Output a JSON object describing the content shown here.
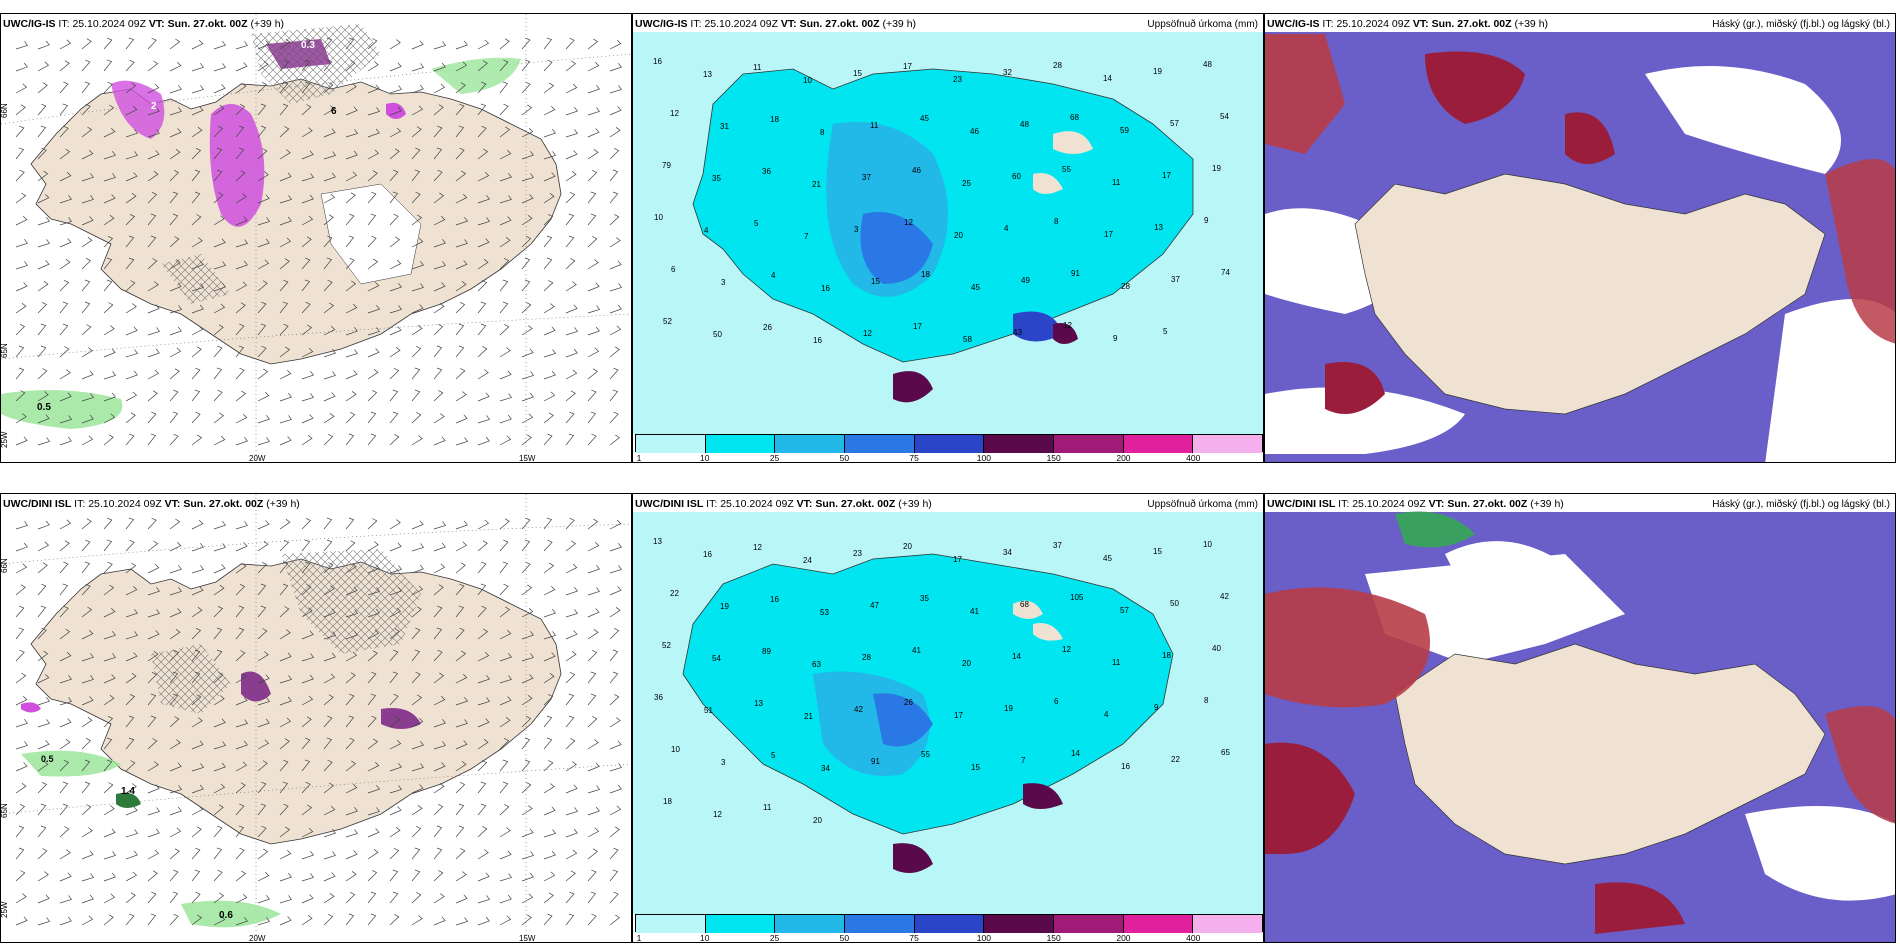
{
  "rows": [
    {
      "panels": [
        {
          "model": "UWC/IG-IS",
          "it_label": "IT:",
          "it": "25.10.2024 09Z",
          "vt_label": "VT:",
          "vt": "Sun. 27.okt. 00Z",
          "lead": "(+39 h)",
          "right_title": "",
          "type": "wind"
        },
        {
          "model": "UWC/IG-IS",
          "it_label": "IT:",
          "it": "25.10.2024 09Z",
          "vt_label": "VT:",
          "vt": "Sun. 27.okt. 00Z",
          "lead": "(+39 h)",
          "right_title": "Uppsöfnuð úrkoma (mm)",
          "type": "precip"
        },
        {
          "model": "UWC/IG-IS",
          "it_label": "IT:",
          "it": "25.10.2024 09Z",
          "vt_label": "VT:",
          "vt": "Sun. 27.okt. 00Z",
          "lead": "(+39 h)",
          "right_title": "Háský (gr.), miðský (fj.bl.) og lágský (bl.)",
          "type": "cloud"
        }
      ]
    },
    {
      "panels": [
        {
          "model": "UWC/DINI ISL",
          "it_label": "IT:",
          "it": "25.10.2024 09Z",
          "vt_label": "VT:",
          "vt": "Sun. 27.okt. 00Z",
          "lead": "(+39 h)",
          "right_title": "",
          "type": "wind"
        },
        {
          "model": "UWC/DINI ISL",
          "it_label": "IT:",
          "it": "25.10.2024 09Z",
          "vt_label": "VT:",
          "vt": "Sun. 27.okt. 00Z",
          "lead": "(+39 h)",
          "right_title": "Uppsöfnuð úrkoma (mm)",
          "type": "precip"
        },
        {
          "model": "UWC/DINI ISL",
          "it_label": "IT:",
          "it": "25.10.2024 09Z",
          "vt_label": "VT:",
          "vt": "Sun. 27.okt. 00Z",
          "lead": "(+39 h)",
          "right_title": "Háský (gr.), miðský (fj.bl.) og lágský (bl.)",
          "type": "cloud"
        }
      ]
    }
  ],
  "wind_labels": {
    "top": {
      "lat_top": "66N",
      "lat_mid": "65N",
      "lon_left": "25W",
      "lon_a": "20W",
      "lon_b": "15W",
      "spot_a": "0.5",
      "spot_b": "0.3",
      "spot_c": "2",
      "spot_d": "6"
    },
    "bottom": {
      "lat_top": "66N",
      "lat_mid": "65N",
      "lon_left": "25W",
      "lon_a": "20W",
      "lon_b": "15W",
      "spot_a": "1.4",
      "spot_b": "0.6",
      "spot_c": "0.5"
    }
  },
  "precip_legend": {
    "labels": [
      "1",
      "10",
      "25",
      "50",
      "75",
      "100",
      "150",
      "200",
      "400"
    ],
    "colors": [
      "#b8f6f8",
      "#00e5f0",
      "#22b8e8",
      "#2a78e6",
      "#2a45c8",
      "#5a0a4a",
      "#a01a78",
      "#e0209c",
      "#f4b0ec"
    ]
  },
  "precip_values_top": [
    "16",
    "13",
    "11",
    "10",
    "15",
    "17",
    "23",
    "32",
    "28",
    "14",
    "19",
    "48",
    "12",
    "31",
    "18",
    "8",
    "11",
    "45",
    "46",
    "48",
    "68",
    "59",
    "57",
    "54",
    "79",
    "35",
    "36",
    "21",
    "37",
    "46",
    "25",
    "60",
    "55",
    "11",
    "17",
    "19",
    "10",
    "4",
    "5",
    "7",
    "3",
    "12",
    "20",
    "4",
    "8",
    "17",
    "13",
    "9",
    "6",
    "3",
    "4",
    "16",
    "15",
    "18",
    "45",
    "49",
    "91",
    "28",
    "37",
    "74",
    "52",
    "50",
    "26",
    "16",
    "12",
    "17",
    "58",
    "43",
    "12",
    "9",
    "5"
  ],
  "precip_values_bottom": [
    "13",
    "16",
    "12",
    "24",
    "23",
    "20",
    "17",
    "34",
    "37",
    "45",
    "15",
    "10",
    "22",
    "19",
    "16",
    "53",
    "47",
    "35",
    "41",
    "68",
    "105",
    "57",
    "50",
    "42",
    "52",
    "54",
    "89",
    "63",
    "28",
    "41",
    "20",
    "14",
    "12",
    "11",
    "18",
    "40",
    "36",
    "51",
    "13",
    "21",
    "42",
    "26",
    "17",
    "19",
    "6",
    "4",
    "9",
    "8",
    "10",
    "3",
    "5",
    "34",
    "91",
    "55",
    "15",
    "7",
    "14",
    "16",
    "22",
    "65",
    "18",
    "12",
    "11",
    "20"
  ],
  "colors": {
    "land": "#efe2d2",
    "precip_bg": "#b8f6f8",
    "cloud_high": "#6a5fc8",
    "cloud_mid": "#b83c46",
    "cloud_low": "#9a1e3c",
    "cloud_green": "#3aa060",
    "snow_pink": "#cf50df",
    "green_wind": "#9be59b"
  }
}
